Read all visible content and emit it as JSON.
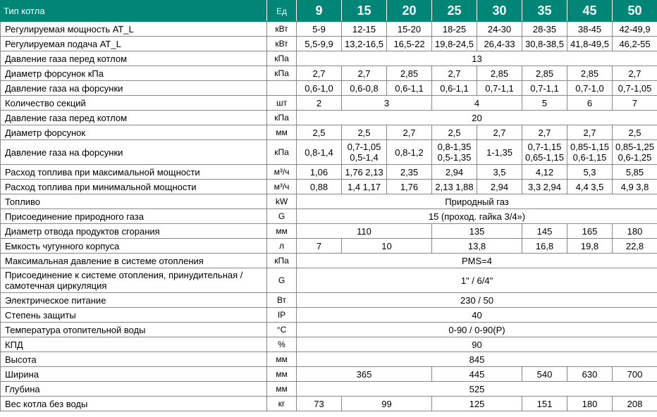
{
  "header": {
    "label_col": "Тип котла",
    "unit_col": "Ед",
    "models": [
      "9",
      "15",
      "20",
      "25",
      "30",
      "35",
      "45",
      "50"
    ]
  },
  "rows": [
    {
      "label": "Регулируемая мощность АТ_L",
      "unit": "кВт",
      "cells": [
        {
          "v": "5-9"
        },
        {
          "v": "12-15"
        },
        {
          "v": "15-20"
        },
        {
          "v": "18-25"
        },
        {
          "v": "24-30"
        },
        {
          "v": "28-35"
        },
        {
          "v": "38-45"
        },
        {
          "v": "42-49,9"
        }
      ]
    },
    {
      "label": "Регулируемая подача АТ_L",
      "unit": "кВт",
      "cells": [
        {
          "v": "5,5-9,9"
        },
        {
          "v": "13,2-16,5"
        },
        {
          "v": "16,5-22"
        },
        {
          "v": "19,8-24,5"
        },
        {
          "v": "26,4-33"
        },
        {
          "v": "30,8-38,5"
        },
        {
          "v": "41,8-49,5"
        },
        {
          "v": "46,2-55"
        }
      ]
    },
    {
      "label": "Давление газа перед котлом",
      "unit": "кПа",
      "cells": [
        {
          "v": "13",
          "span": 8
        }
      ]
    },
    {
      "label": "Диаметр форсунок кПа",
      "unit": "кПа",
      "cells": [
        {
          "v": "2,7"
        },
        {
          "v": "2,7"
        },
        {
          "v": "2,85"
        },
        {
          "v": "2,7"
        },
        {
          "v": "2,85"
        },
        {
          "v": "2,85"
        },
        {
          "v": "2,85"
        },
        {
          "v": "2,7"
        }
      ]
    },
    {
      "label": "Давление газа на форсунки",
      "unit": "",
      "cells": [
        {
          "v": "0,6-1,0"
        },
        {
          "v": "0,6-0,8"
        },
        {
          "v": "0,6-1,1"
        },
        {
          "v": "0,6-1,1"
        },
        {
          "v": "0,7-1,1"
        },
        {
          "v": "0,7-1,1"
        },
        {
          "v": "0,7-1,0"
        },
        {
          "v": "0,7-1,05"
        }
      ]
    },
    {
      "label": "Количество секций",
      "unit": "шт",
      "cells": [
        {
          "v": "2"
        },
        {
          "v": "3",
          "span": 2
        },
        {
          "v": "4",
          "span": 2
        },
        {
          "v": "5"
        },
        {
          "v": "6"
        },
        {
          "v": "7"
        }
      ]
    },
    {
      "label": "Давление газа перед котлом",
      "unit": "кПа",
      "cells": [
        {
          "v": "20",
          "span": 8
        }
      ]
    },
    {
      "label": "Диаметр форсунок",
      "unit": "мм",
      "cells": [
        {
          "v": "2,5"
        },
        {
          "v": "2,5"
        },
        {
          "v": "2,7"
        },
        {
          "v": "2,5"
        },
        {
          "v": "2,7"
        },
        {
          "v": "2,7"
        },
        {
          "v": "2,7"
        },
        {
          "v": "2,5"
        }
      ]
    },
    {
      "label": "Давление газа на форсунки",
      "unit": "кПа",
      "cells": [
        {
          "v": "0,8-1,4"
        },
        {
          "v": "0,7-1,05 0,5-1,4"
        },
        {
          "v": "0,8-1,2"
        },
        {
          "v": "0,8-1,35 0,5-1,35"
        },
        {
          "v": "1-1,35"
        },
        {
          "v": "0,7-1,15 0,65-1,15"
        },
        {
          "v": "0,85-1,15 0,6-1,15"
        },
        {
          "v": "0,85-1,25 0,6-1,25"
        }
      ]
    },
    {
      "label": "Расход топлива при максимальной мощности",
      "unit": "м³/ч",
      "cells": [
        {
          "v": "1,06"
        },
        {
          "v": "1,76 2,13"
        },
        {
          "v": "2,35"
        },
        {
          "v": "2,94"
        },
        {
          "v": "3,5"
        },
        {
          "v": "4,12"
        },
        {
          "v": "5,3"
        },
        {
          "v": "5,85"
        }
      ]
    },
    {
      "label": "Расход топлива при минимальной мощности",
      "unit": "м³/ч",
      "cells": [
        {
          "v": "0,88"
        },
        {
          "v": "1,4 1,17"
        },
        {
          "v": "1,76"
        },
        {
          "v": "2,13 1,88"
        },
        {
          "v": "2,94"
        },
        {
          "v": "3,3 2,94"
        },
        {
          "v": "4,4 3,5"
        },
        {
          "v": "4,9 3,8"
        }
      ]
    },
    {
      "label": "Топливо",
      "unit": "kW",
      "cells": [
        {
          "v": "Природный газ",
          "span": 8
        }
      ]
    },
    {
      "label": "Присоединение природного газа",
      "unit": "G",
      "cells": [
        {
          "v": "15 (проход. гайка 3/4»)",
          "span": 8
        }
      ]
    },
    {
      "label": "Диаметр отвода продуктов сгорания",
      "unit": "мм",
      "cells": [
        {
          "v": "110",
          "span": 3
        },
        {
          "v": "135",
          "span": 2
        },
        {
          "v": "145"
        },
        {
          "v": "165"
        },
        {
          "v": "180"
        }
      ]
    },
    {
      "label": "Емкость чугунного корпуса",
      "unit": "л",
      "cells": [
        {
          "v": "7"
        },
        {
          "v": "10",
          "span": 2
        },
        {
          "v": "13,8",
          "span": 2
        },
        {
          "v": "16,8"
        },
        {
          "v": "19,8"
        },
        {
          "v": "22,8"
        }
      ]
    },
    {
      "label": "Максимальная давление в системе отопления",
      "unit": "кПа",
      "cells": [
        {
          "v": "PMS=4",
          "span": 8
        }
      ]
    },
    {
      "label": "Присоединение к системе отопления, принудительная /самотечная циркуляция",
      "unit": "G",
      "cells": [
        {
          "v": "1\" / 6/4\"",
          "span": 8
        }
      ]
    },
    {
      "label": "Электрическое питание",
      "unit": "Вт",
      "cells": [
        {
          "v": "230 / 50",
          "span": 8
        }
      ]
    },
    {
      "label": "Степень защиты",
      "unit": "IP",
      "cells": [
        {
          "v": "40",
          "span": 8
        }
      ]
    },
    {
      "label": "Температура отопительной воды",
      "unit": "°C",
      "cells": [
        {
          "v": "0-90 / 0-90(Р)",
          "span": 8
        }
      ]
    },
    {
      "label": "КПД",
      "unit": "%",
      "cells": [
        {
          "v": "90",
          "span": 8
        }
      ]
    },
    {
      "label": "Высота",
      "unit": "мм",
      "cells": [
        {
          "v": "845",
          "span": 8
        }
      ]
    },
    {
      "label": "Ширина",
      "unit": "мм",
      "cells": [
        {
          "v": "365",
          "span": 3
        },
        {
          "v": "445",
          "span": 2
        },
        {
          "v": "540"
        },
        {
          "v": "630"
        },
        {
          "v": "700"
        }
      ]
    },
    {
      "label": "Глубина",
      "unit": "мм",
      "cells": [
        {
          "v": "525",
          "span": 8
        }
      ]
    },
    {
      "label": "Вес котла без воды",
      "unit": "кг",
      "cells": [
        {
          "v": "73"
        },
        {
          "v": "99",
          "span": 2
        },
        {
          "v": "125",
          "span": 2
        },
        {
          "v": "151"
        },
        {
          "v": "180"
        },
        {
          "v": "208"
        }
      ]
    }
  ]
}
